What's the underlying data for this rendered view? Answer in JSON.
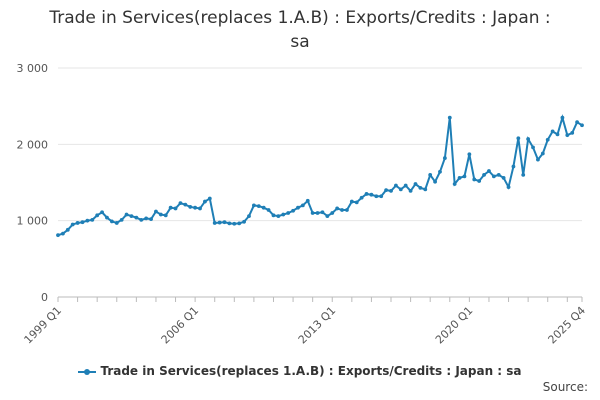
{
  "chart_data": {
    "type": "line",
    "title_lines": [
      "Trade in Services(replaces 1.A.B) : Exports/Credits : Japan :",
      "sa"
    ],
    "xlabel": "",
    "ylabel": "",
    "x_tick_labels": [
      "1999 Q1",
      "2006 Q1",
      "2013 Q1",
      "2020 Q1",
      "2025 Q4"
    ],
    "y_tick_labels": [
      "0",
      "1 000",
      "2 000",
      "3 000"
    ],
    "y_ticks": [
      0,
      1000,
      2000,
      3000
    ],
    "ylim": [
      0,
      3000
    ],
    "grid": "horizontal",
    "legend_position": "bottom",
    "color": "#1f7fb6",
    "series": [
      {
        "name": "Trade in Services(replaces 1.A.B) : Exports/Credits : Japan : sa",
        "start": "1999 Q1",
        "end": "2025 Q4",
        "values": [
          810,
          830,
          880,
          950,
          970,
          980,
          1000,
          1010,
          1070,
          1110,
          1040,
          990,
          970,
          1010,
          1080,
          1060,
          1040,
          1010,
          1030,
          1020,
          1120,
          1080,
          1070,
          1170,
          1160,
          1230,
          1210,
          1180,
          1170,
          1160,
          1250,
          1290,
          970,
          975,
          980,
          965,
          960,
          965,
          985,
          1060,
          1200,
          1190,
          1170,
          1140,
          1070,
          1060,
          1080,
          1100,
          1130,
          1170,
          1200,
          1260,
          1100,
          1100,
          1110,
          1060,
          1100,
          1160,
          1140,
          1140,
          1250,
          1240,
          1300,
          1350,
          1340,
          1320,
          1320,
          1400,
          1390,
          1460,
          1410,
          1460,
          1390,
          1480,
          1430,
          1410,
          1600,
          1510,
          1640,
          1820,
          2350,
          1480,
          1560,
          1580,
          1870,
          1540,
          1520,
          1600,
          1650,
          1580,
          1600,
          1560,
          1440,
          1710,
          2080,
          1600,
          2070,
          1960,
          1800,
          1880,
          2060,
          2170,
          2130,
          2350,
          2120,
          2150,
          2290,
          2250
        ]
      }
    ]
  },
  "legend": {
    "label": "Trade in Services(replaces 1.A.B) : Exports/Credits : Japan : sa"
  },
  "source": {
    "label": "Source:"
  }
}
